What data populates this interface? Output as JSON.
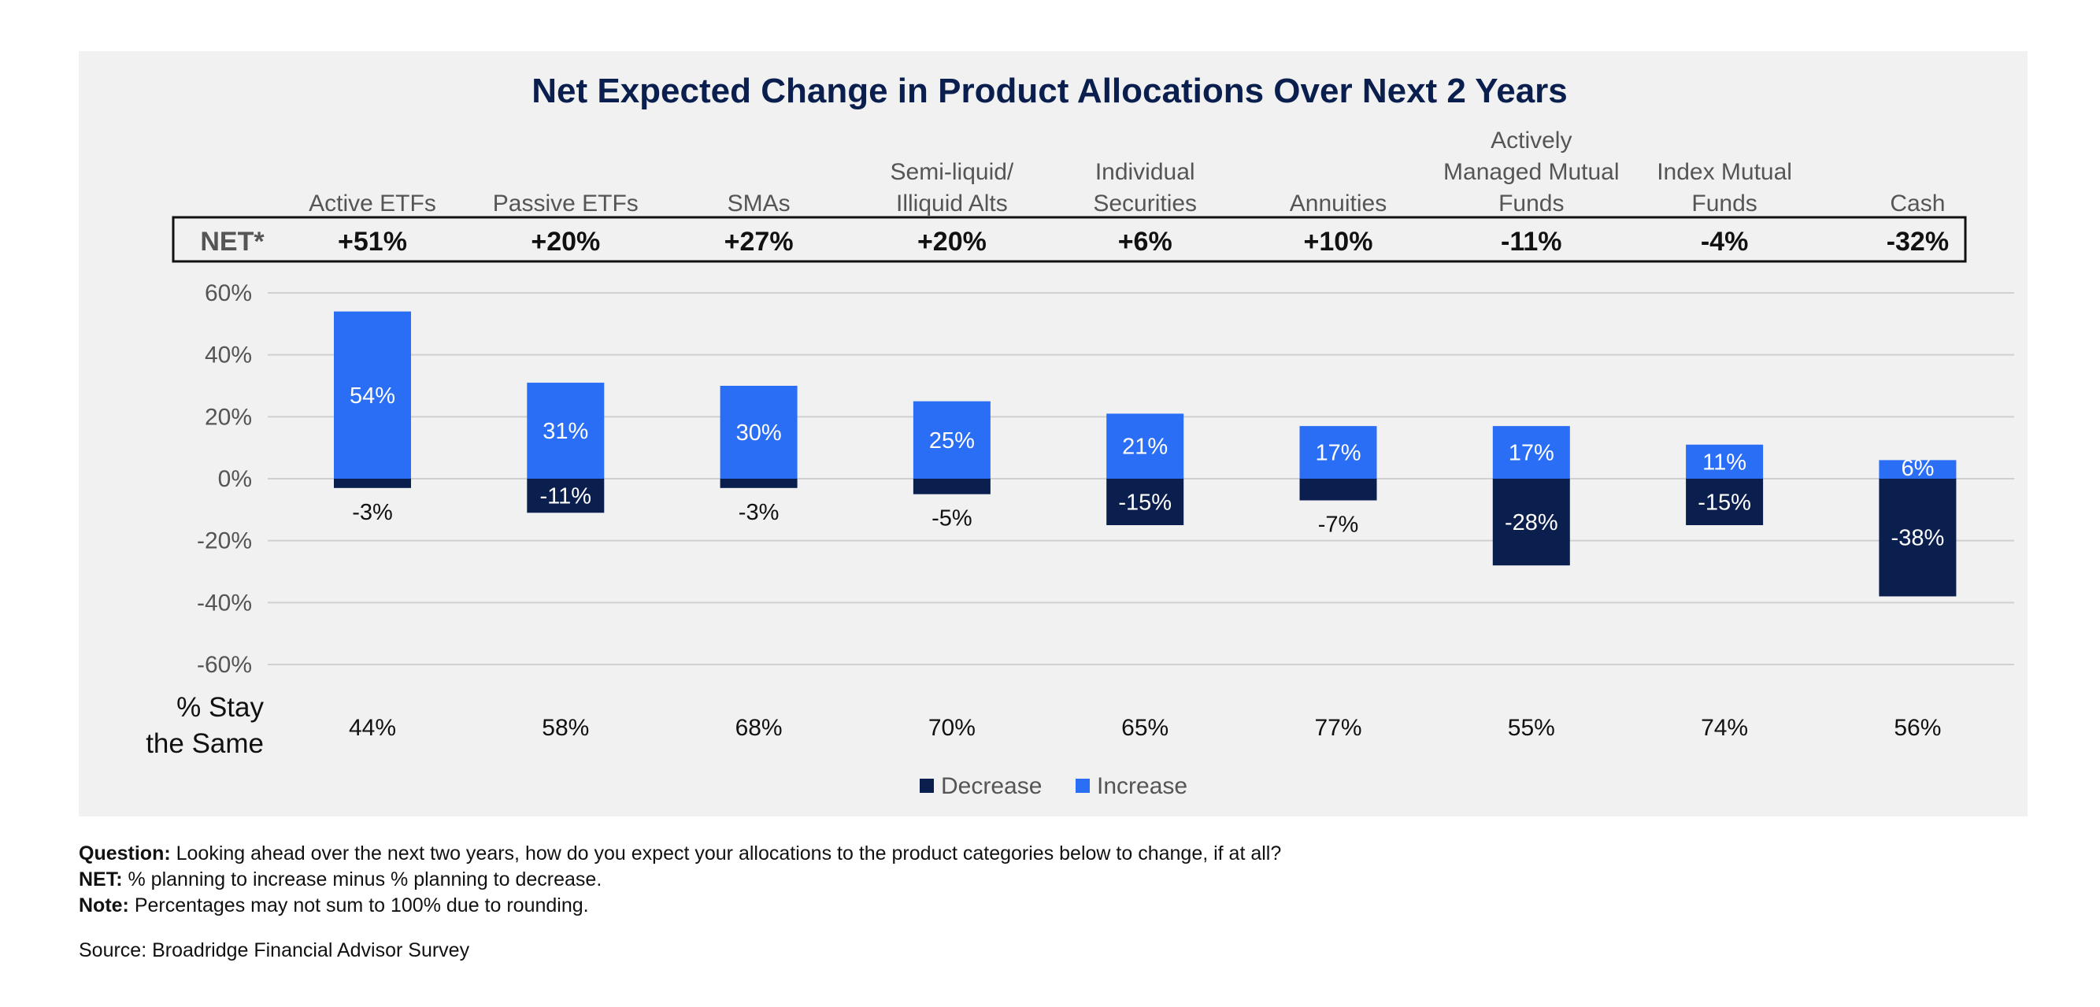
{
  "chart_data": {
    "type": "bar",
    "title": "Net Expected Change in Product Allocations Over Next 2 Years",
    "categories": [
      [
        "Active ETFs"
      ],
      [
        "Passive ETFs"
      ],
      [
        "SMAs"
      ],
      [
        "Semi-liquid/",
        "Illiquid Alts"
      ],
      [
        "Individual",
        "Securities"
      ],
      [
        "Annuities"
      ],
      [
        "Actively",
        "Managed Mutual",
        "Funds"
      ],
      [
        "Index Mutual",
        "Funds"
      ],
      [
        "Cash"
      ]
    ],
    "series": [
      {
        "name": "Decrease",
        "color": "#0b1f4f",
        "values": [
          -3,
          -11,
          -3,
          -5,
          -15,
          -7,
          -28,
          -15,
          -38
        ],
        "labels": [
          "-3%",
          "-11%",
          "-3%",
          "-5%",
          "-15%",
          "-7%",
          "-28%",
          "-15%",
          "-38%"
        ]
      },
      {
        "name": "Increase",
        "color": "#2a6ef5",
        "values": [
          54,
          31,
          30,
          25,
          21,
          17,
          17,
          11,
          6
        ],
        "labels": [
          "54%",
          "31%",
          "30%",
          "25%",
          "21%",
          "17%",
          "17%",
          "11%",
          "6%"
        ]
      }
    ],
    "net_label": "NET*",
    "net": [
      "+51%",
      "+20%",
      "+27%",
      "+20%",
      "+6%",
      "+10%",
      "-11%",
      "-4%",
      "-32%"
    ],
    "stay_label": [
      "% Stay",
      "the Same"
    ],
    "stay_same": [
      "44%",
      "58%",
      "68%",
      "70%",
      "65%",
      "77%",
      "55%",
      "74%",
      "56%"
    ],
    "ylim": [
      -60,
      60
    ],
    "yticks": [
      60,
      40,
      20,
      0,
      -20,
      -40,
      -60
    ],
    "ytick_labels": [
      "60%",
      "40%",
      "20%",
      "0%",
      "-20%",
      "-40%",
      "-60%"
    ],
    "grid": true,
    "legend": "bottom-center"
  },
  "notes": {
    "question_label": "Question:",
    "question_text": " Looking ahead over the next two years, how do you expect your allocations to the product categories below to change, if at all?",
    "net_label": "NET:",
    "net_text": " % planning to increase minus % planning to decrease.",
    "note_label": "Note:",
    "note_text": " Percentages may not sum to 100% due to rounding.",
    "source": "Source: Broadridge Financial Advisor Survey"
  }
}
